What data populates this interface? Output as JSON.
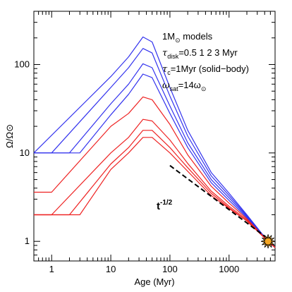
{
  "chart_data": {
    "type": "line",
    "xlabel": "Age (Myr)",
    "ylabel": "Ω/Ω⊙",
    "xscale": "log",
    "yscale": "log",
    "xlim": [
      0.5,
      6000
    ],
    "ylim": [
      0.6,
      400
    ],
    "x_ticks": [
      {
        "value": 1,
        "label": "1"
      },
      {
        "value": 10,
        "label": "10"
      },
      {
        "value": 100,
        "label": "100"
      },
      {
        "value": 1000,
        "label": "1000"
      }
    ],
    "y_ticks": [
      {
        "value": 1,
        "label": "1"
      },
      {
        "value": 10,
        "label": "10"
      },
      {
        "value": 100,
        "label": "100"
      }
    ],
    "grid": false,
    "annotations": {
      "mass_num": "1M",
      "mass_sun": "⊙",
      "mass_rest": " models",
      "tau": "τ",
      "disk_sub": "disk",
      "disk_vals": "=0.5  1  2  3  Myr",
      "c_sub": "c",
      "c_vals": "=1Myr (solid−body)",
      "omega": "ω",
      "sat_sub": "sat",
      "sat_vals": "=14ω",
      "sat_sun": "⊙",
      "power_law_base": "t",
      "power_law_exp": "-1/2"
    },
    "series": [
      {
        "color": "#3333ee",
        "points": [
          [
            0.5,
            10
          ],
          [
            0.5,
            10
          ],
          [
            10,
            73
          ],
          [
            20,
            122
          ],
          [
            35,
            205
          ],
          [
            50,
            180
          ],
          [
            100,
            55
          ],
          [
            200,
            18
          ],
          [
            500,
            6
          ],
          [
            1000,
            3.5
          ],
          [
            2000,
            2
          ],
          [
            4570,
            1
          ],
          [
            6000,
            0.85
          ]
        ]
      },
      {
        "color": "#3333ee",
        "points": [
          [
            0.5,
            10
          ],
          [
            1,
            10
          ],
          [
            10,
            55
          ],
          [
            20,
            92
          ],
          [
            35,
            152
          ],
          [
            50,
            135
          ],
          [
            100,
            44
          ],
          [
            200,
            15.5
          ],
          [
            500,
            5.5
          ],
          [
            1000,
            3.3
          ],
          [
            2000,
            1.95
          ],
          [
            4570,
            1
          ],
          [
            6000,
            0.85
          ]
        ]
      },
      {
        "color": "#3333ee",
        "points": [
          [
            0.5,
            10
          ],
          [
            2,
            10
          ],
          [
            10,
            36
          ],
          [
            20,
            60
          ],
          [
            35,
            102
          ],
          [
            50,
            92
          ],
          [
            100,
            34
          ],
          [
            200,
            13
          ],
          [
            500,
            5
          ],
          [
            1000,
            3.1
          ],
          [
            2000,
            1.9
          ],
          [
            4570,
            1
          ],
          [
            6000,
            0.85
          ]
        ]
      },
      {
        "color": "#3333ee",
        "points": [
          [
            0.5,
            10
          ],
          [
            3,
            10
          ],
          [
            10,
            27
          ],
          [
            20,
            46
          ],
          [
            35,
            78
          ],
          [
            50,
            71
          ],
          [
            100,
            28
          ],
          [
            200,
            11.5
          ],
          [
            500,
            4.6
          ],
          [
            1000,
            2.9
          ],
          [
            2000,
            1.85
          ],
          [
            4570,
            1
          ],
          [
            6000,
            0.85
          ]
        ]
      },
      {
        "color": "#ee2222",
        "points": [
          [
            0.5,
            3.6
          ],
          [
            1,
            3.6
          ],
          [
            10,
            20
          ],
          [
            20,
            28
          ],
          [
            35,
            43
          ],
          [
            50,
            40
          ],
          [
            100,
            21
          ],
          [
            200,
            9.5
          ],
          [
            500,
            4.2
          ],
          [
            1000,
            2.7
          ],
          [
            2000,
            1.8
          ],
          [
            4570,
            1
          ],
          [
            6000,
            0.85
          ]
        ]
      },
      {
        "color": "#ee2222",
        "points": [
          [
            0.5,
            2
          ],
          [
            1,
            2
          ],
          [
            10,
            10
          ],
          [
            20,
            15
          ],
          [
            35,
            24
          ],
          [
            50,
            23
          ],
          [
            100,
            14
          ],
          [
            200,
            7.6
          ],
          [
            500,
            3.7
          ],
          [
            1000,
            2.5
          ],
          [
            2000,
            1.75
          ],
          [
            4570,
            1
          ],
          [
            6000,
            0.85
          ]
        ]
      },
      {
        "color": "#ee2222",
        "points": [
          [
            0.5,
            2
          ],
          [
            2,
            2
          ],
          [
            10,
            7.5
          ],
          [
            20,
            11.5
          ],
          [
            35,
            18
          ],
          [
            50,
            18
          ],
          [
            100,
            11.5
          ],
          [
            200,
            6.8
          ],
          [
            500,
            3.5
          ],
          [
            1000,
            2.4
          ],
          [
            2000,
            1.7
          ],
          [
            4570,
            1
          ],
          [
            6000,
            0.85
          ]
        ]
      },
      {
        "color": "#ee2222",
        "points": [
          [
            0.5,
            2
          ],
          [
            3,
            2
          ],
          [
            10,
            6.5
          ],
          [
            20,
            10
          ],
          [
            35,
            15
          ],
          [
            50,
            15
          ],
          [
            100,
            10
          ],
          [
            200,
            6.2
          ],
          [
            500,
            3.3
          ],
          [
            1000,
            2.35
          ],
          [
            2000,
            1.7
          ],
          [
            4570,
            1
          ],
          [
            6000,
            0.85
          ]
        ]
      }
    ],
    "power_law_line": {
      "points": [
        [
          100,
          7.2
        ],
        [
          4570,
          1.07
        ]
      ],
      "style": "dashed",
      "color": "#000000"
    },
    "sun_marker": {
      "x": 4570,
      "y": 1,
      "color": "#f5a623"
    }
  }
}
